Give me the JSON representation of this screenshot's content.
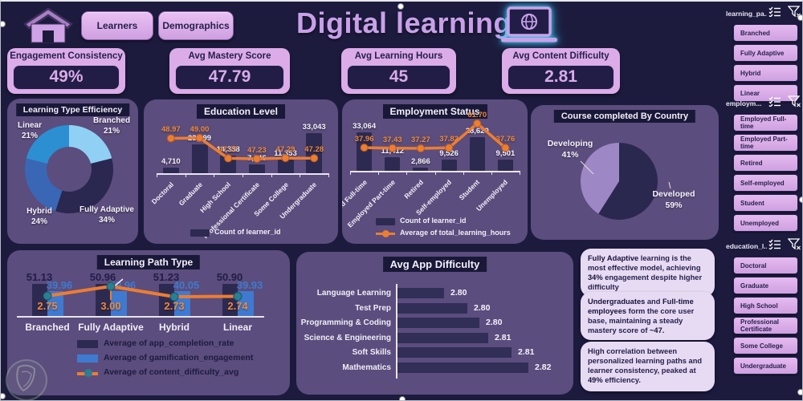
{
  "app": {
    "title": "Digital learning"
  },
  "topbar": {
    "buttons": [
      {
        "label": "Learners"
      },
      {
        "label": "Demographics"
      }
    ]
  },
  "colors": {
    "background_navy": "#1c1b3e",
    "card_purple": "#5b4d7d",
    "button_purple": "#d9abe8",
    "accent_orange": "#ed7d31",
    "bar_navy": "#2d2a52",
    "bar_blue": "#3f7ad0",
    "marker_teal": "#2a7f92",
    "title_purple": "#c9a0e8",
    "insight_bg": "#e7daf3",
    "pie_dark": "#2b2850",
    "pie_light": "#9d87c4",
    "glow_cyan": "#38c6f0"
  },
  "kpis": [
    {
      "label": "Engagement Consistency",
      "value": "49%"
    },
    {
      "label": "Avg Mastery Score",
      "value": "47.79"
    },
    {
      "label": "Avg Learning Hours",
      "value": "45"
    },
    {
      "label": "Avg Content Difficulty",
      "value": "2.81"
    }
  ],
  "chart_data": [
    {
      "id": "learning-type-efficiency",
      "type": "pie",
      "donut": true,
      "title": "Learning Type Efficiency",
      "categories": [
        "Branched",
        "Fully Adaptive",
        "Hybrid",
        "Linear"
      ],
      "values": [
        21,
        34,
        24,
        21
      ],
      "unit": "%",
      "pct_labels": [
        "21%",
        "34%",
        "24%",
        "21%"
      ],
      "colors": [
        "#8fd0f4",
        "#2a2750",
        "#3a67b5",
        "#2c8fd2"
      ]
    },
    {
      "id": "education-level",
      "type": "bar+line",
      "title": "Education Level",
      "categories": [
        "Doctoral",
        "Graduate",
        "High School",
        "Professional Certificate",
        "Some College",
        "Undergraduate"
      ],
      "bars": {
        "name": "Count of learner_id",
        "values": [
          4710,
          23999,
          14338,
          7546,
          11353,
          33043
        ],
        "labels": [
          "4,710",
          "23,999",
          "14,338",
          "7,546",
          "11,353",
          "33,043"
        ]
      },
      "line": {
        "values": [
          48.97,
          49.0,
          47.27,
          47.23,
          47.29,
          47.28
        ],
        "labels": [
          "48.97",
          "49.00",
          "47.27",
          "47.23",
          "47.29",
          "47.28"
        ]
      },
      "legend": [
        "Count of learner_id"
      ]
    },
    {
      "id": "employment-status",
      "type": "bar+line",
      "title": "Employment Status",
      "categories": [
        "Employed Full-time",
        "Employed Part-time",
        "Retired",
        "Self-employed",
        "Student",
        "Unemployed"
      ],
      "bars": {
        "name": "Count of learner_id",
        "values": [
          33064,
          11412,
          2866,
          9526,
          28620,
          9501
        ],
        "labels": [
          "33,064",
          "11,412",
          "2,866",
          "9,526",
          "28,620",
          "9,501"
        ]
      },
      "line": {
        "name": "Average of total_learning_hours",
        "values": [
          37.96,
          37.43,
          37.27,
          37.82,
          61.7,
          37.76
        ],
        "labels": [
          "37.96",
          "37.43",
          "37.27",
          "37.82",
          "61.70",
          "37.76"
        ]
      },
      "legend": [
        "Count of learner_id",
        "Average of total_learning_hours"
      ]
    },
    {
      "id": "course-completed-by-country",
      "type": "pie",
      "title": "Course completed By Country",
      "categories": [
        "Developed",
        "Developing"
      ],
      "values": [
        59,
        41
      ],
      "unit": "%",
      "pct_labels": [
        "59%",
        "41%"
      ],
      "colors": [
        "#2b2850",
        "#9d87c4"
      ]
    },
    {
      "id": "learning-path-type",
      "type": "bar+line",
      "title": "Learning Path Type",
      "categories": [
        "Branched",
        "Fully Adaptive",
        "Hybrid",
        "Linear"
      ],
      "series": [
        {
          "name": "Average of app_completion_rate",
          "values": [
            51.13,
            50.96,
            51.23,
            50.9
          ],
          "labels": [
            "51.13",
            "50.96",
            "51.23",
            "50.90"
          ],
          "color": "#2d2a52"
        },
        {
          "name": "Average of gamification_engagement",
          "values": [
            39.96,
            39.96,
            40.05,
            39.93
          ],
          "labels": [
            "39.96",
            "39.96",
            "40.05",
            "39.93"
          ],
          "color": "#3f7ad0"
        }
      ],
      "line": {
        "name": "Average of content_difficulty_avg",
        "values": [
          2.75,
          3.0,
          2.73,
          2.74
        ],
        "labels": [
          "2.75",
          "3.00",
          "2.73",
          "2.74"
        ]
      }
    },
    {
      "id": "avg-app-difficulty",
      "type": "bar",
      "orientation": "horizontal",
      "title": "Avg App Difficulty",
      "categories": [
        "Language Learning",
        "Test Prep",
        "Programming & Coding",
        "Science & Engineering",
        "Soft Skills",
        "Mathematics"
      ],
      "values": [
        2.8,
        2.8,
        2.8,
        2.81,
        2.81,
        2.82
      ],
      "labels": [
        "2.80",
        "2.80",
        "2.80",
        "2.81",
        "2.81",
        "2.82"
      ]
    }
  ],
  "slicers": [
    {
      "title": "learning_pa...",
      "items": [
        "Branched",
        "Fully Adaptive",
        "Hybrid",
        "Linear"
      ]
    },
    {
      "title": "employm...",
      "items": [
        "Employed Full-time",
        "Employed Part-time",
        "Retired",
        "Self-employed",
        "Student",
        "Unemployed"
      ]
    },
    {
      "title": "education_l...",
      "items": [
        "Doctoral",
        "Graduate",
        "High School",
        "Professional Certificate",
        "Some College",
        "Undergraduate"
      ]
    }
  ],
  "insights": [
    {
      "segments": [
        {
          "text": "Fully Adaptive",
          "bold": true
        },
        {
          "text": " learning is the most effective model, achieving ",
          "bold": false
        },
        {
          "text": "34%",
          "bold": true
        },
        {
          "text": " engagement despite higher difficulty",
          "bold": false
        }
      ]
    },
    {
      "segments": [
        {
          "text": "Undergraduates",
          "bold": true
        },
        {
          "text": " and ",
          "bold": false
        },
        {
          "text": "Full-time employees",
          "bold": true
        },
        {
          "text": " form the core user base, maintaining a steady mastery score of ",
          "bold": false
        },
        {
          "text": "~47.",
          "bold": true
        }
      ]
    },
    {
      "segments": [
        {
          "text": "High correlation between personalized learning paths and learner consistency, peaked at ",
          "bold": false
        },
        {
          "text": "49%",
          "bold": true
        },
        {
          "text": " efficiency.",
          "bold": false
        }
      ]
    }
  ]
}
